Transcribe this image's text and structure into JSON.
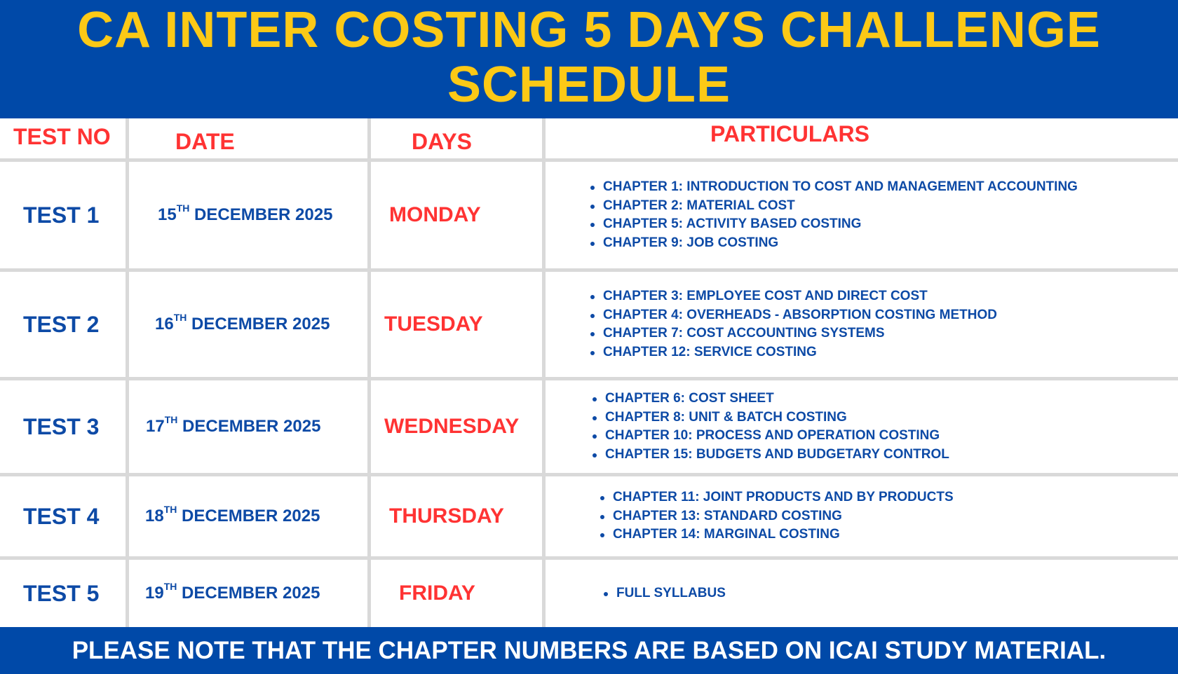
{
  "title": {
    "line1": "CA INTER COSTING 5 DAYS CHALLENGE",
    "line2": "SCHEDULE"
  },
  "colors": {
    "banner": "#0049a8",
    "title": "#fcc916",
    "header_text": "#ff3333",
    "body_text": "#0d4aa6",
    "grid": "#d9d9d9"
  },
  "headers": {
    "test_no": "TEST NO",
    "date": "DATE",
    "days": "DAYS",
    "particulars": "PARTICULARS"
  },
  "rows": [
    {
      "test": "TEST 1",
      "day_num": "15",
      "suffix": "TH",
      "date_rest": "DECEMBER 2025",
      "day": "MONDAY",
      "items": [
        "CHAPTER 1: INTRODUCTION TO COST AND MANAGEMENT ACCOUNTING",
        "CHAPTER 2: MATERIAL COST",
        "CHAPTER 5: ACTIVITY BASED COSTING",
        "CHAPTER 9: JOB COSTING"
      ]
    },
    {
      "test": "TEST 2",
      "day_num": "16",
      "suffix": "TH",
      "date_rest": "DECEMBER 2025",
      "day": "TUESDAY",
      "items": [
        "CHAPTER 3: EMPLOYEE COST AND DIRECT COST",
        "CHAPTER 4: OVERHEADS - ABSORPTION COSTING METHOD",
        "CHAPTER 7: COST ACCOUNTING SYSTEMS",
        "CHAPTER 12: SERVICE COSTING"
      ]
    },
    {
      "test": "TEST 3",
      "day_num": "17",
      "suffix": "TH",
      "date_rest": "DECEMBER 2025",
      "day": "WEDNESDAY",
      "items": [
        "CHAPTER 6: COST SHEET",
        "CHAPTER 8: UNIT & BATCH COSTING",
        "CHAPTER 10: PROCESS AND OPERATION COSTING",
        "CHAPTER 15: BUDGETS AND BUDGETARY CONTROL"
      ]
    },
    {
      "test": "TEST 4",
      "day_num": "18",
      "suffix": "TH",
      "date_rest": "DECEMBER 2025",
      "day": "THURSDAY",
      "items": [
        "CHAPTER 11: JOINT PRODUCTS AND BY PRODUCTS",
        "CHAPTER 13: STANDARD COSTING",
        "CHAPTER 14: MARGINAL COSTING"
      ]
    },
    {
      "test": "TEST 5",
      "day_num": "19",
      "suffix": "TH",
      "date_rest": "DECEMBER 2025",
      "day": "FRIDAY",
      "items": [
        "FULL SYLLABUS"
      ]
    }
  ],
  "footer": "PLEASE NOTE THAT THE CHAPTER NUMBERS ARE BASED ON ICAI STUDY MATERIAL."
}
